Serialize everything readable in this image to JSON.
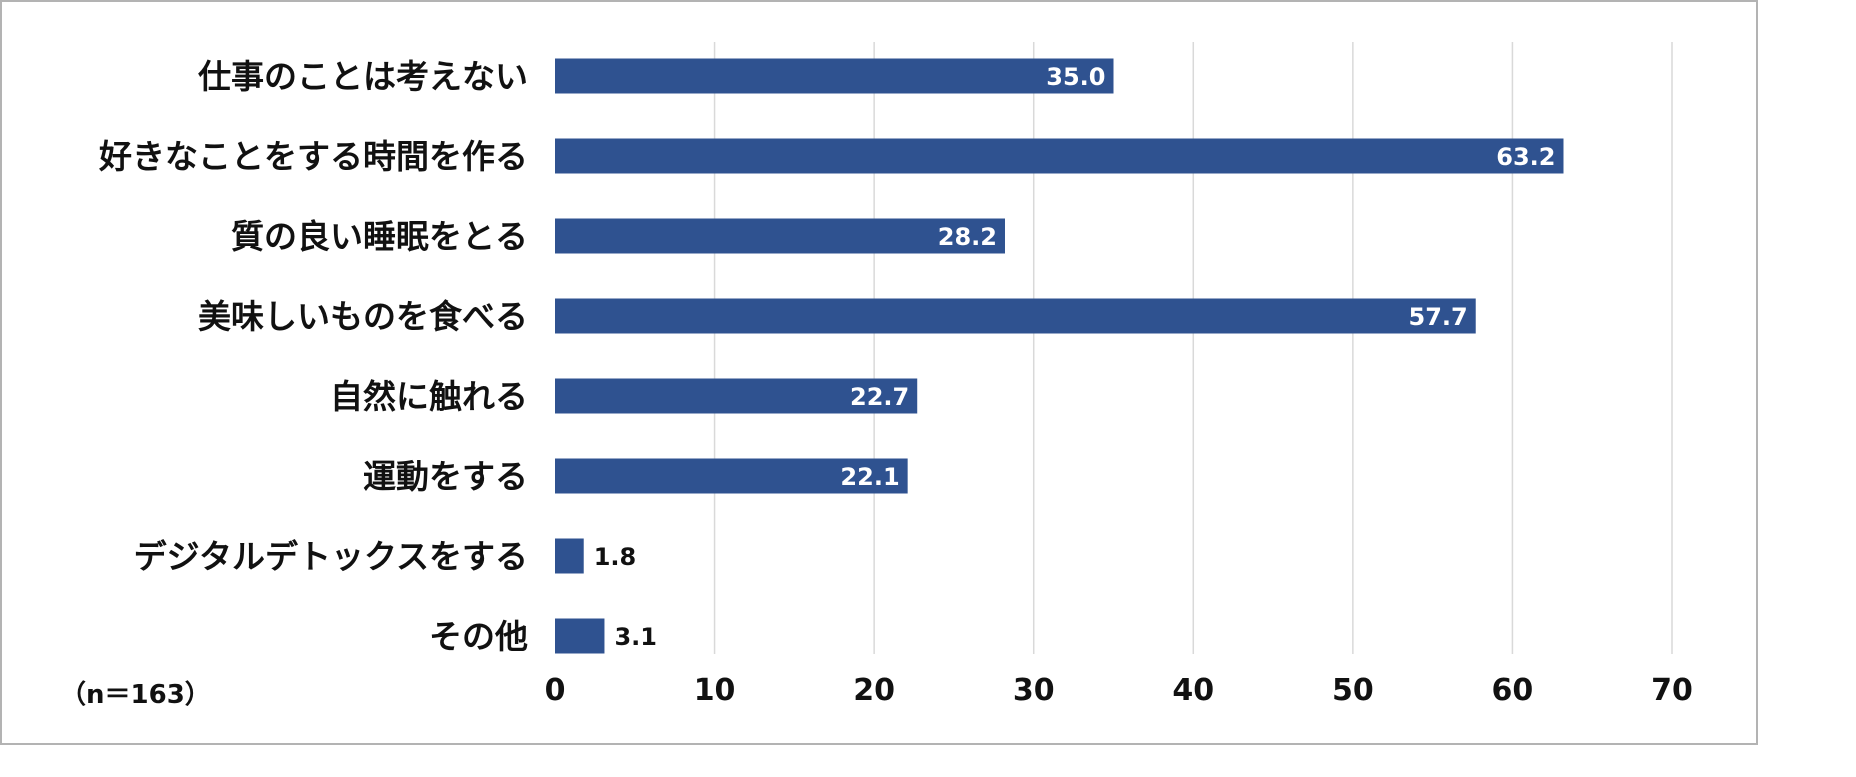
{
  "chart_data": {
    "type": "bar",
    "orientation": "horizontal",
    "categories": [
      "仕事のことは考えない",
      "好きなことをする時間を作る",
      "質の良い睡眠をとる",
      "美味しいものを食べる",
      "自然に触れる",
      "運動をする",
      "デジタルデトックスをする",
      "その他"
    ],
    "values": [
      35.0,
      63.2,
      28.2,
      57.7,
      22.7,
      22.1,
      1.8,
      3.1
    ],
    "value_labels": [
      "35.0",
      "63.2",
      "28.2",
      "57.7",
      "22.7",
      "22.1",
      "1.8",
      "3.1"
    ],
    "xlim": [
      0,
      70
    ],
    "xticks": [
      0,
      10,
      20,
      30,
      40,
      50,
      60,
      70
    ],
    "grid": "vertical",
    "bar_color": "#2f5290",
    "note": "（n＝163）"
  }
}
